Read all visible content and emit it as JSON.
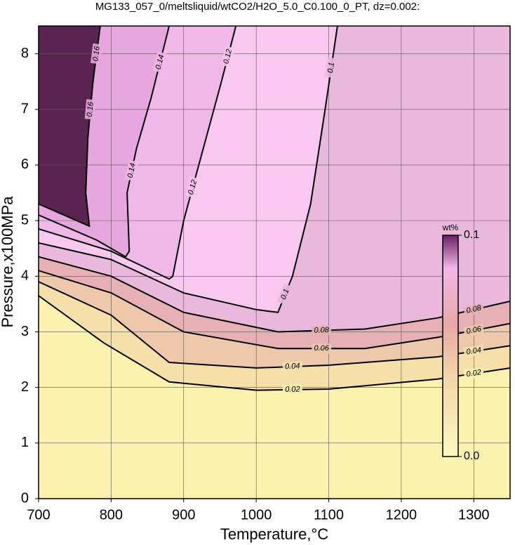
{
  "chart_data": {
    "type": "contour",
    "title": "MG133_057_0/meltsliquid/wtCO2/H2O_5.0_C0.100_0_PT, dz=0.002:",
    "x_label": "Temperature,°C",
    "y_label": "Pressure,x100MPa",
    "xlim": [
      700,
      1350
    ],
    "ylim": [
      0,
      8.5
    ],
    "xticks": [
      700,
      800,
      900,
      1000,
      1100,
      1200,
      1300
    ],
    "yticks": [
      0,
      1,
      2,
      3,
      4,
      5,
      6,
      7,
      8
    ],
    "grid": true,
    "background": "#5a2450",
    "contours": [
      {
        "level": 0.16,
        "fill": "#e6a6de",
        "x": [
          700,
          770,
          765,
          768,
          775,
          785
        ],
        "y": [
          5.3,
          4.9,
          5.5,
          6.5,
          7.5,
          8.5
        ]
      },
      {
        "level": 0.14,
        "fill": "#f0b8e7",
        "x": [
          700,
          780,
          820,
          825,
          822,
          835,
          855,
          880
        ],
        "y": [
          5.1,
          4.65,
          4.35,
          4.45,
          5.5,
          6.3,
          7.2,
          8.5
        ]
      },
      {
        "level": 0.12,
        "fill": "#f8c8ef",
        "x": [
          700,
          800,
          880,
          885,
          900,
          925,
          950,
          972
        ],
        "y": [
          4.85,
          4.45,
          3.95,
          4.0,
          5.0,
          6.2,
          7.4,
          8.5
        ]
      },
      {
        "level": 0.1,
        "fill": "#e9b8dc",
        "x": [
          700,
          800,
          900,
          1000,
          1030,
          1050,
          1075,
          1095,
          1112
        ],
        "y": [
          4.6,
          4.3,
          3.7,
          3.4,
          3.35,
          4.0,
          5.3,
          7.0,
          8.5
        ]
      },
      {
        "level": 0.08,
        "fill": "#e6b0b4",
        "x": [
          700,
          800,
          900,
          1030,
          1150,
          1250,
          1350
        ],
        "y": [
          4.35,
          4.0,
          3.35,
          3.0,
          3.05,
          3.25,
          3.55
        ]
      },
      {
        "level": 0.06,
        "fill": "#eec8aa",
        "x": [
          700,
          800,
          900,
          1030,
          1150,
          1250,
          1350
        ],
        "y": [
          4.1,
          3.7,
          3.0,
          2.7,
          2.7,
          2.9,
          3.15
        ]
      },
      {
        "level": 0.04,
        "fill": "#f4e0a8",
        "x": [
          700,
          800,
          880,
          1000,
          1100,
          1250,
          1350
        ],
        "y": [
          3.9,
          3.3,
          2.45,
          2.35,
          2.4,
          2.55,
          2.75
        ]
      },
      {
        "level": 0.02,
        "fill": "#faf2ae",
        "x": [
          700,
          790,
          880,
          1000,
          1100,
          1250,
          1350
        ],
        "y": [
          3.65,
          2.8,
          2.1,
          1.95,
          1.97,
          2.15,
          2.35
        ]
      }
    ],
    "colorbar": {
      "label": "wt%",
      "ticks": [
        {
          "value": 0,
          "label": "0.0"
        },
        0.1
      ]
    }
  }
}
